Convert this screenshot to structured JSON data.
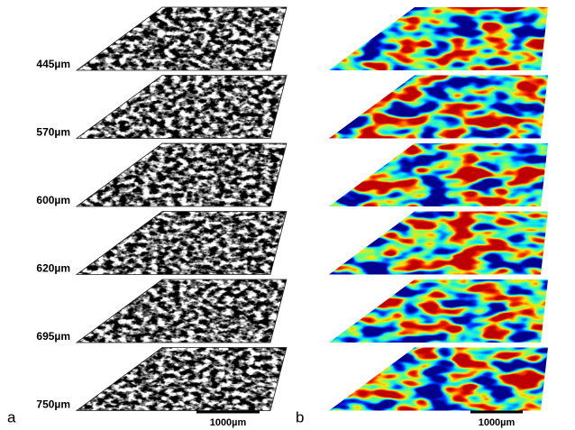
{
  "panels": [
    {
      "label": "a",
      "slice_labels": [
        "445µm",
        "570µm",
        "600µm",
        "620µm",
        "695µm",
        "750µm"
      ],
      "scale_bar_label": "1000µm"
    },
    {
      "label": "b",
      "scale_bar_label": "1000µm"
    }
  ]
}
